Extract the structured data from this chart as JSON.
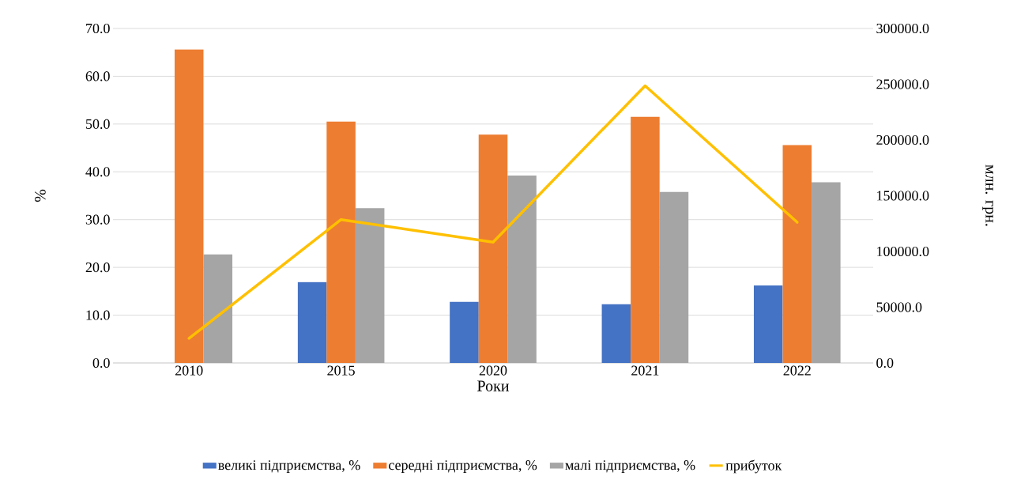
{
  "chart_data": {
    "type": "bar",
    "xlabel": "Роки",
    "ylabel": "%",
    "y2label": "млн. грн.",
    "categories": [
      "2010",
      "2015",
      "2020",
      "2021",
      "2022"
    ],
    "series": [
      {
        "name": "великі підприємства, %",
        "color": "#4472c4",
        "values": [
          null,
          16.9,
          12.8,
          12.3,
          16.2
        ]
      },
      {
        "name": "середні підприємства, %",
        "color": "#ed7d31",
        "values": [
          65.6,
          50.5,
          47.8,
          51.5,
          45.6
        ]
      },
      {
        "name": "малі підприємства, %",
        "color": "#a5a5a5",
        "values": [
          22.7,
          32.4,
          39.2,
          35.8,
          37.8
        ]
      },
      {
        "name": "прибуток",
        "color": "#ffc000",
        "type": "line",
        "axis": "y2",
        "values": [
          22000,
          128600,
          108300,
          248600,
          126200
        ]
      }
    ],
    "ylim": [
      0,
      70
    ],
    "yticks": [
      {
        "value": 0,
        "label": "0.0"
      },
      {
        "value": 10,
        "label": "10.0"
      },
      {
        "value": 20,
        "label": "20.0"
      },
      {
        "value": 30,
        "label": "30.0"
      },
      {
        "value": 40,
        "label": "40.0"
      },
      {
        "value": 50,
        "label": "50.0"
      },
      {
        "value": 60,
        "label": "60.0"
      },
      {
        "value": 70,
        "label": "70.0"
      }
    ],
    "y2lim": [
      0,
      300000
    ],
    "y2ticks": [
      {
        "value": 0,
        "label": "0.0"
      },
      {
        "value": 50000,
        "label": "50000.0"
      },
      {
        "value": 100000,
        "label": "100000.0"
      },
      {
        "value": 150000,
        "label": "150000.0"
      },
      {
        "value": 200000,
        "label": "200000.0"
      },
      {
        "value": 250000,
        "label": "250000.0"
      },
      {
        "value": 300000,
        "label": "300000.0"
      }
    ],
    "grid": "y",
    "legend": "bottom",
    "marker": "none"
  }
}
